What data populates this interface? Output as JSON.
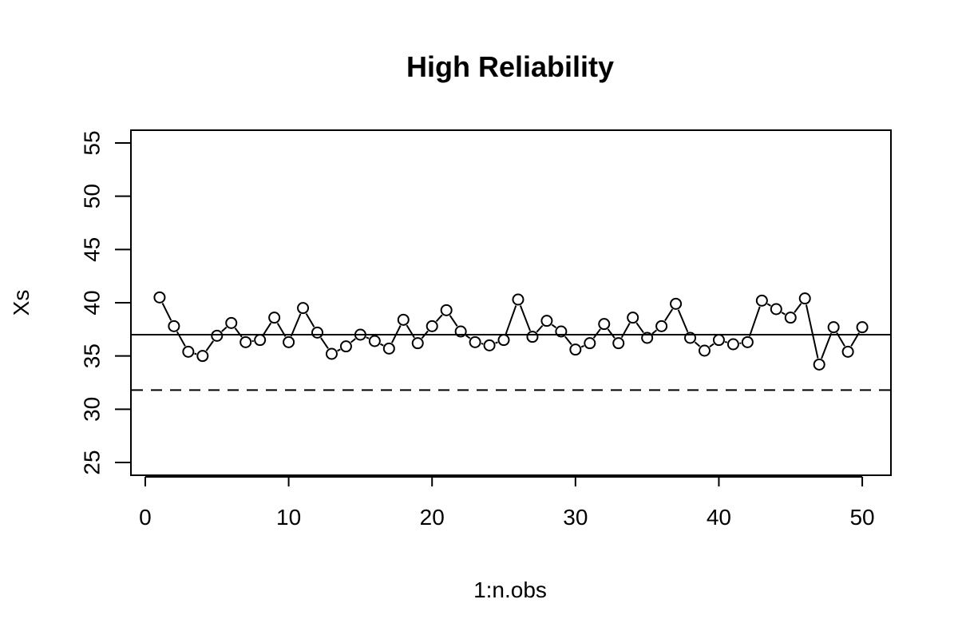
{
  "chart_data": {
    "type": "line",
    "title": "High Reliability",
    "xlabel": "1:n.obs",
    "ylabel": "Xs",
    "xlim": [
      -1,
      52
    ],
    "ylim": [
      23.8,
      56.2
    ],
    "x_ticks": [
      0,
      10,
      20,
      30,
      40,
      50
    ],
    "y_ticks": [
      25,
      30,
      35,
      40,
      45,
      50,
      55
    ],
    "grid": false,
    "legend": "none",
    "series": [
      {
        "x": [
          1,
          2,
          3,
          4,
          5,
          6,
          7,
          8,
          9,
          10,
          11,
          12,
          13,
          14,
          15,
          16,
          17,
          18,
          19,
          20,
          21,
          22,
          23,
          24,
          25,
          26,
          27,
          28,
          29,
          30,
          31,
          32,
          33,
          34,
          35,
          36,
          37,
          38,
          39,
          40,
          41,
          42,
          43,
          44,
          45,
          46,
          47,
          48,
          49,
          50
        ],
        "values": [
          40.5,
          37.8,
          35.4,
          35.0,
          36.9,
          38.1,
          36.3,
          36.5,
          38.6,
          36.3,
          39.5,
          37.2,
          35.2,
          35.9,
          37.0,
          36.4,
          35.7,
          38.4,
          36.2,
          37.8,
          39.3,
          37.3,
          36.3,
          36.0,
          36.5,
          40.3,
          36.8,
          38.3,
          37.3,
          35.6,
          36.2,
          38.0,
          36.2,
          38.6,
          36.7,
          37.8,
          39.9,
          36.7,
          35.5,
          36.5,
          36.1,
          36.3,
          40.2,
          39.4,
          38.6,
          40.4,
          34.2,
          37.7,
          35.4,
          37.7
        ]
      }
    ],
    "reference_lines": [
      {
        "y": 37.0,
        "style": "solid"
      },
      {
        "y": 31.8,
        "style": "dashed"
      }
    ]
  }
}
